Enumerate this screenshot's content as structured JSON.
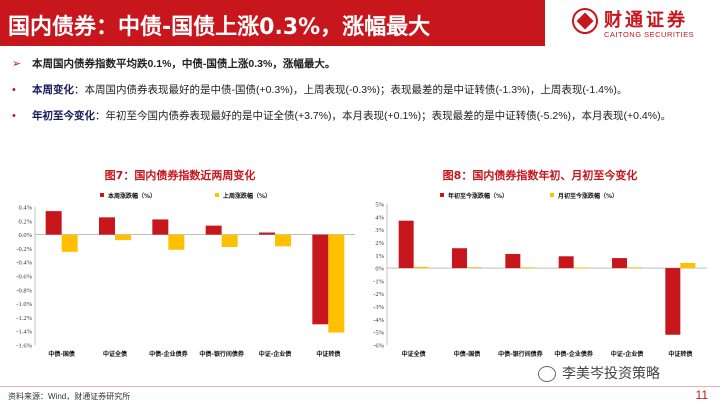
{
  "header": {
    "title": "国内债券：中债-国债上涨0.3%，涨幅最大",
    "logo_cn": "财通证券",
    "logo_en": "CAITONG SECURITIES"
  },
  "bullets": [
    {
      "marker": "➢",
      "lead": "",
      "text": "本周国内债券指数平均跌0.1%，中债-国债上涨0.3%，涨幅最大。"
    },
    {
      "marker": "•",
      "lead": "本周变化",
      "text": "：本周国内债券表现最好的是中债-国债(+0.3%)，上周表现(-0.3%)；表现最差的是中证转债(-1.3%)，上周表现(-1.4%)。"
    },
    {
      "marker": "•",
      "lead": "年初至今变化",
      "text": "：年初至今国内债券表现最好的是中证全债(+3.7%)，本月表现(+0.1%)；表现最差的是中证转债(-5.2%)，本月表现(+0.4%)。"
    }
  ],
  "chart_data": [
    {
      "type": "bar",
      "title": "图7：国内债券指数近两周变化",
      "categories": [
        "中债-国债",
        "中证全债",
        "中债-企业债券",
        "中债-银行间债券",
        "中证-企业债",
        "中证转债"
      ],
      "series": [
        {
          "name": "本周涨跌幅（%）",
          "color": "#c8161d",
          "values": [
            0.34,
            0.25,
            0.22,
            0.13,
            0.03,
            -1.3
          ]
        },
        {
          "name": "上周涨跌幅（%）",
          "color": "#ffc000",
          "values": [
            -0.25,
            -0.08,
            -0.22,
            -0.18,
            -0.17,
            -1.42
          ]
        }
      ],
      "yticks": [
        "0.4%",
        "0.2%",
        "0.0%",
        "-0.2%",
        "-0.4%",
        "-0.6%",
        "-0.8%",
        "-1.0%",
        "-1.2%",
        "-1.4%",
        "-1.6%"
      ],
      "ylim": [
        -1.6,
        0.4
      ],
      "legend": "top"
    },
    {
      "type": "bar",
      "title": "图8：国内债券指数年初、月初至今变化",
      "categories": [
        "中证全债",
        "中债-国债",
        "中债-银行间债券",
        "中债-企业债券",
        "中证-企业债",
        "中证转债"
      ],
      "series": [
        {
          "name": "年初至今涨跌幅（%）",
          "color": "#c8161d",
          "values": [
            3.7,
            1.55,
            1.1,
            0.92,
            0.78,
            -5.2
          ]
        },
        {
          "name": "月初至今涨跌幅（%）",
          "color": "#ffc000",
          "values": [
            0.1,
            0.07,
            0.06,
            0.05,
            0.06,
            0.4
          ]
        }
      ],
      "yticks": [
        "5%",
        "4%",
        "3%",
        "2%",
        "1%",
        "0%",
        "-1%",
        "-2%",
        "-3%",
        "-4%",
        "-5%",
        "-6%"
      ],
      "ylim": [
        -6,
        5
      ],
      "legend": "top"
    }
  ],
  "footer": {
    "source": "资料来源：Wind，财通证券研究所",
    "watermark": "李美岑投资策略",
    "page": "11"
  },
  "colors": {
    "brand": "#c8161d",
    "accent": "#ffc000"
  }
}
